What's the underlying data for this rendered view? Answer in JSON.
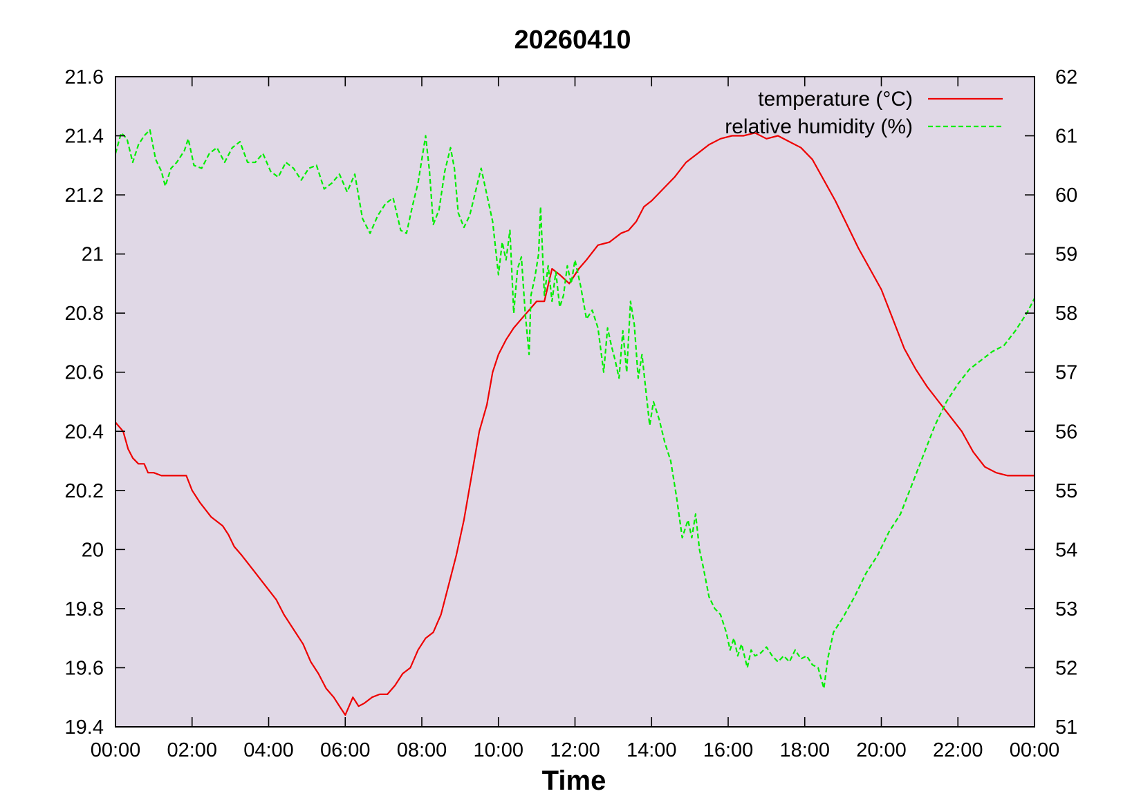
{
  "chart_data": {
    "type": "line",
    "title": "20260410",
    "xlabel": "Time",
    "ylabel": "",
    "y2label": "",
    "x_ticks": [
      "00:00",
      "02:00",
      "04:00",
      "06:00",
      "08:00",
      "10:00",
      "12:00",
      "14:00",
      "16:00",
      "18:00",
      "20:00",
      "22:00",
      "00:00"
    ],
    "xlim_hours": [
      0,
      24
    ],
    "y_ticks": [
      "19.4",
      "19.6",
      "19.8",
      "20",
      "20.2",
      "20.4",
      "20.6",
      "20.8",
      "21",
      "21.2",
      "21.4",
      "21.6"
    ],
    "ylim": [
      19.4,
      21.6
    ],
    "y2_ticks": [
      "51",
      "52",
      "53",
      "54",
      "55",
      "56",
      "57",
      "58",
      "59",
      "60",
      "61",
      "62"
    ],
    "y2lim": [
      51,
      62
    ],
    "grid": false,
    "legend_position": "top-right",
    "background_color": "#e0d8e6",
    "series": [
      {
        "name": "temperature (°C)",
        "axis": "left",
        "color": "#ee0000",
        "style": "solid",
        "x_hours": [
          0,
          0.2,
          0.33,
          0.45,
          0.6,
          0.75,
          0.85,
          1.0,
          1.2,
          1.5,
          1.85,
          2.0,
          2.2,
          2.5,
          2.8,
          2.95,
          3.1,
          3.3,
          3.6,
          3.9,
          4.2,
          4.4,
          4.6,
          4.9,
          5.1,
          5.3,
          5.5,
          5.7,
          5.85,
          6.0,
          6.1,
          6.2,
          6.35,
          6.5,
          6.7,
          6.9,
          7.1,
          7.3,
          7.5,
          7.7,
          7.9,
          8.1,
          8.3,
          8.5,
          8.7,
          8.9,
          9.1,
          9.3,
          9.5,
          9.7,
          9.85,
          10.0,
          10.2,
          10.4,
          10.6,
          10.8,
          11.0,
          11.2,
          11.4,
          11.6,
          11.85,
          11.95,
          12.1,
          12.3,
          12.6,
          12.9,
          13.2,
          13.4,
          13.6,
          13.8,
          14.0,
          14.3,
          14.6,
          14.9,
          15.2,
          15.5,
          15.8,
          16.1,
          16.4,
          16.7,
          17.0,
          17.3,
          17.6,
          17.9,
          18.2,
          18.5,
          18.8,
          19.1,
          19.4,
          19.7,
          20.0,
          20.3,
          20.6,
          20.9,
          21.2,
          21.5,
          21.8,
          22.1,
          22.4,
          22.7,
          23.0,
          23.3,
          23.6,
          24.0
        ],
        "values": [
          20.43,
          20.4,
          20.34,
          20.31,
          20.29,
          20.29,
          20.26,
          20.26,
          20.25,
          20.25,
          20.25,
          20.2,
          20.16,
          20.11,
          20.08,
          20.05,
          20.01,
          19.98,
          19.93,
          19.88,
          19.83,
          19.78,
          19.74,
          19.68,
          19.62,
          19.58,
          19.53,
          19.5,
          19.47,
          19.44,
          19.47,
          19.5,
          19.47,
          19.48,
          19.5,
          19.51,
          19.51,
          19.54,
          19.58,
          19.6,
          19.66,
          19.7,
          19.72,
          19.78,
          19.88,
          19.98,
          20.1,
          20.25,
          20.4,
          20.49,
          20.6,
          20.66,
          20.71,
          20.75,
          20.78,
          20.81,
          20.84,
          20.84,
          20.95,
          20.93,
          20.9,
          20.92,
          20.95,
          20.98,
          21.03,
          21.04,
          21.07,
          21.08,
          21.11,
          21.16,
          21.18,
          21.22,
          21.26,
          21.31,
          21.34,
          21.37,
          21.39,
          21.4,
          21.4,
          21.41,
          21.39,
          21.4,
          21.38,
          21.36,
          21.32,
          21.25,
          21.18,
          21.1,
          21.02,
          20.95,
          20.88,
          20.78,
          20.68,
          20.61,
          20.55,
          20.5,
          20.45,
          20.4,
          20.33,
          20.28,
          20.26,
          20.25,
          20.25,
          20.25
        ]
      },
      {
        "name": "relative humidity (%)",
        "axis": "right",
        "color": "#00ee00",
        "style": "dashed",
        "x_hours": [
          0,
          0.15,
          0.3,
          0.45,
          0.6,
          0.75,
          0.9,
          1.05,
          1.2,
          1.3,
          1.45,
          1.6,
          1.8,
          1.9,
          2.05,
          2.25,
          2.45,
          2.65,
          2.85,
          3.05,
          3.25,
          3.45,
          3.65,
          3.85,
          4.05,
          4.25,
          4.45,
          4.65,
          4.85,
          5.05,
          5.25,
          5.45,
          5.65,
          5.85,
          6.05,
          6.25,
          6.45,
          6.65,
          6.85,
          7.05,
          7.25,
          7.45,
          7.6,
          7.75,
          7.9,
          8.0,
          8.1,
          8.2,
          8.3,
          8.45,
          8.6,
          8.75,
          8.85,
          8.95,
          9.1,
          9.25,
          9.4,
          9.55,
          9.7,
          9.85,
          10.0,
          10.1,
          10.2,
          10.3,
          10.4,
          10.5,
          10.6,
          10.7,
          10.8,
          10.85,
          10.95,
          11.05,
          11.1,
          11.2,
          11.3,
          11.4,
          11.5,
          11.6,
          11.7,
          11.8,
          11.9,
          12.0,
          12.15,
          12.3,
          12.45,
          12.6,
          12.75,
          12.85,
          12.95,
          13.05,
          13.15,
          13.25,
          13.35,
          13.45,
          13.55,
          13.65,
          13.75,
          13.85,
          13.95,
          14.05,
          14.2,
          14.35,
          14.5,
          14.65,
          14.8,
          14.95,
          15.05,
          15.15,
          15.25,
          15.35,
          15.5,
          15.65,
          15.8,
          15.95,
          16.05,
          16.15,
          16.25,
          16.35,
          16.5,
          16.6,
          16.7,
          16.85,
          17.0,
          17.15,
          17.3,
          17.45,
          17.6,
          17.75,
          17.9,
          18.05,
          18.2,
          18.35,
          18.5,
          18.6,
          18.75,
          19.0,
          19.3,
          19.6,
          19.9,
          20.2,
          20.5,
          20.8,
          21.1,
          21.4,
          21.7,
          22.0,
          22.3,
          22.6,
          22.9,
          23.2,
          23.5,
          23.8,
          24.0
        ],
        "values": [
          60.7,
          61.05,
          60.95,
          60.55,
          60.85,
          61.0,
          61.1,
          60.6,
          60.4,
          60.15,
          60.45,
          60.55,
          60.75,
          60.95,
          60.5,
          60.45,
          60.7,
          60.8,
          60.55,
          60.8,
          60.9,
          60.55,
          60.55,
          60.7,
          60.4,
          60.3,
          60.55,
          60.45,
          60.25,
          60.45,
          60.5,
          60.1,
          60.2,
          60.35,
          60.05,
          60.35,
          59.6,
          59.35,
          59.65,
          59.85,
          59.95,
          59.4,
          59.35,
          59.8,
          60.2,
          60.6,
          61.0,
          60.4,
          59.5,
          59.75,
          60.4,
          60.8,
          60.45,
          59.7,
          59.45,
          59.65,
          60.05,
          60.45,
          60.0,
          59.55,
          58.65,
          59.2,
          58.9,
          59.4,
          58.0,
          58.75,
          58.95,
          58.0,
          57.3,
          58.3,
          58.6,
          59.0,
          59.8,
          58.3,
          58.8,
          58.2,
          58.7,
          58.1,
          58.3,
          58.8,
          58.5,
          58.9,
          58.45,
          57.9,
          58.05,
          57.75,
          57.0,
          57.75,
          57.45,
          57.2,
          56.9,
          57.7,
          57.0,
          58.2,
          57.8,
          56.9,
          57.3,
          56.7,
          56.1,
          56.5,
          56.2,
          55.8,
          55.5,
          54.9,
          54.2,
          54.5,
          54.2,
          54.6,
          54.0,
          53.7,
          53.2,
          53.0,
          52.9,
          52.6,
          52.3,
          52.5,
          52.2,
          52.4,
          52.0,
          52.3,
          52.2,
          52.25,
          52.35,
          52.2,
          52.1,
          52.2,
          52.1,
          52.3,
          52.15,
          52.2,
          52.05,
          52.0,
          51.65,
          52.15,
          52.6,
          52.85,
          53.2,
          53.6,
          53.9,
          54.3,
          54.6,
          55.1,
          55.6,
          56.1,
          56.5,
          56.8,
          57.05,
          57.2,
          57.35,
          57.45,
          57.7,
          58.0,
          58.25
        ]
      }
    ]
  }
}
